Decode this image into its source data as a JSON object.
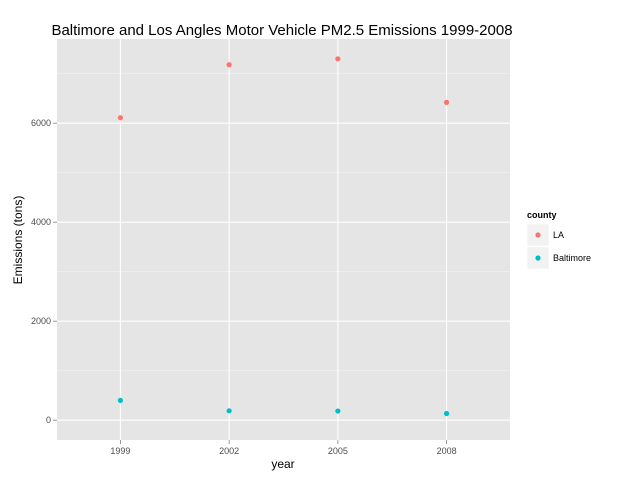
{
  "chart_data": {
    "type": "scatter",
    "title": "Baltimore and Los Angles Motor Vehicle PM2.5 Emissions 1999-2008",
    "xlabel": "year",
    "ylabel": "Emissions (tons)",
    "x_categories": [
      "1999",
      "2002",
      "2005",
      "2008"
    ],
    "y_ticks": [
      0,
      2000,
      4000,
      6000
    ],
    "ylim": [
      -400,
      7700
    ],
    "grid": true,
    "legend": {
      "title": "county",
      "placement": "right"
    },
    "series": [
      {
        "name": "LA",
        "color": "#F8766D",
        "values": [
          6110,
          7180,
          7300,
          6420
        ]
      },
      {
        "name": "Baltimore",
        "color": "#00BFC4",
        "values": [
          400,
          190,
          185,
          135
        ]
      }
    ]
  }
}
